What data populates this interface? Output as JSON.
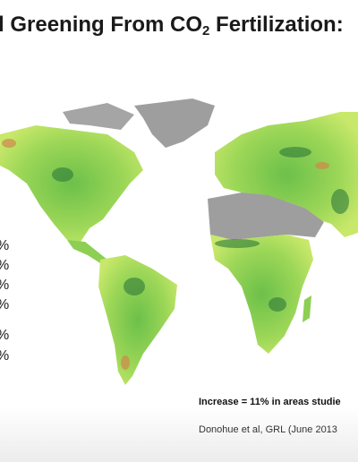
{
  "title": {
    "before": "l Greening From CO",
    "subscript": "2",
    "after": " Fertilization:"
  },
  "left_fragments": [
    "%",
    "%",
    "%",
    "%",
    "%",
    "%"
  ],
  "note": "Increase = 11% in areas studie",
  "citation": "Donohue et al, GRL (June 2013"
}
